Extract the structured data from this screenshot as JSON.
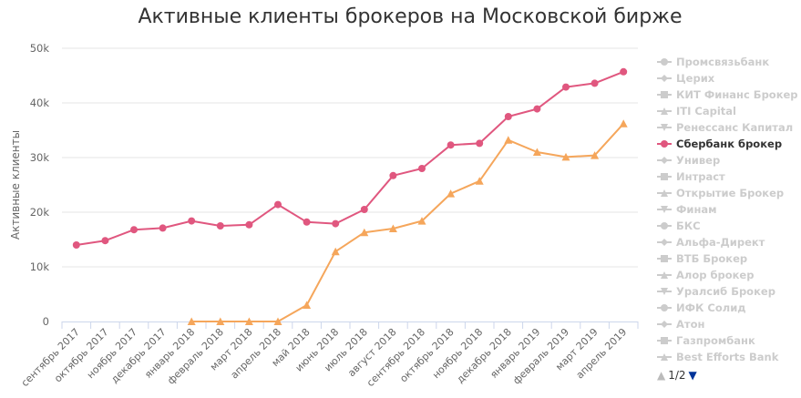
{
  "title": "Активные клиенты брокеров на Московской бирже",
  "colors": {
    "sber": "#e0577f",
    "other": "#f5a65b",
    "axis": "#666666",
    "grid": "#e6e6e6",
    "legend_inactive": "#cccccc",
    "legend_active": "#333333",
    "nav_up": "#bbbbbb",
    "nav_down": "#003399"
  },
  "chart_data": {
    "type": "line",
    "title": "Активные клиенты брокеров на Московской бирже",
    "ylabel": "Активные клиенты",
    "xlabel": "",
    "ylim": [
      0,
      50000
    ],
    "yticks": [
      0,
      10000,
      20000,
      30000,
      40000,
      50000
    ],
    "ytick_labels": [
      "0",
      "10k",
      "20k",
      "30k",
      "40k",
      "50k"
    ],
    "grid": true,
    "legend_position": "right",
    "categories": [
      "сентябрь 2017",
      "октябрь 2017",
      "ноябрь 2017",
      "декабрь 2017",
      "январь 2018",
      "февраль 2018",
      "март 2018",
      "апрель 2018",
      "май 2018",
      "июнь 2018",
      "июль 2018",
      "август 2018",
      "сентябрь 2018",
      "октябрь 2018",
      "ноябрь 2018",
      "декабрь 2018",
      "январь 2019",
      "февраль 2019",
      "март 2019",
      "апрель 2019"
    ],
    "series": [
      {
        "name": "Сбербанк брокер",
        "color": "#e0577f",
        "marker": "circle",
        "values": [
          14000,
          14800,
          16800,
          17100,
          18400,
          17500,
          17700,
          21400,
          18200,
          17900,
          20500,
          26700,
          28000,
          32300,
          32600,
          37500,
          38900,
          42900,
          43600,
          45700
        ]
      },
      {
        "name": "",
        "color": "#f5a65b",
        "marker": "triangle",
        "values": [
          null,
          null,
          null,
          null,
          0,
          0,
          0,
          0,
          3000,
          12800,
          16300,
          17000,
          18400,
          23400,
          25700,
          33200,
          31000,
          30100,
          30400,
          36200
        ]
      }
    ]
  },
  "legend": {
    "items": [
      {
        "label": "Промсвязьбанк",
        "symbol": "circle",
        "active": false
      },
      {
        "label": "Церих",
        "symbol": "diamond",
        "active": false
      },
      {
        "label": "КИТ Финанс Брокер",
        "symbol": "square",
        "active": false
      },
      {
        "label": "ITI Capital",
        "symbol": "triangle",
        "active": false
      },
      {
        "label": "Ренессанс Капитал",
        "symbol": "triangle-down",
        "active": false
      },
      {
        "label": "Сбербанк брокер",
        "symbol": "circle",
        "active": true
      },
      {
        "label": "Универ",
        "symbol": "diamond",
        "active": false
      },
      {
        "label": "Интраст",
        "symbol": "square",
        "active": false
      },
      {
        "label": "Открытие Брокер",
        "symbol": "triangle",
        "active": false
      },
      {
        "label": "Финам",
        "symbol": "triangle-down",
        "active": false
      },
      {
        "label": "БКС",
        "symbol": "circle",
        "active": false
      },
      {
        "label": "Альфа-Директ",
        "symbol": "diamond",
        "active": false
      },
      {
        "label": "ВТБ Брокер",
        "symbol": "square",
        "active": false
      },
      {
        "label": "Алор брокер",
        "symbol": "triangle",
        "active": false
      },
      {
        "label": "Уралсиб Брокер",
        "symbol": "triangle-down",
        "active": false
      },
      {
        "label": "ИФК Солид",
        "symbol": "circle",
        "active": false
      },
      {
        "label": "Атон",
        "symbol": "diamond",
        "active": false
      },
      {
        "label": "Газпромбанк",
        "symbol": "square",
        "active": false
      },
      {
        "label": "Best Efforts Bank",
        "symbol": "triangle",
        "active": false
      }
    ],
    "page_text": "1/2",
    "nav_up_icon": "▲",
    "nav_down_icon": "▼"
  }
}
